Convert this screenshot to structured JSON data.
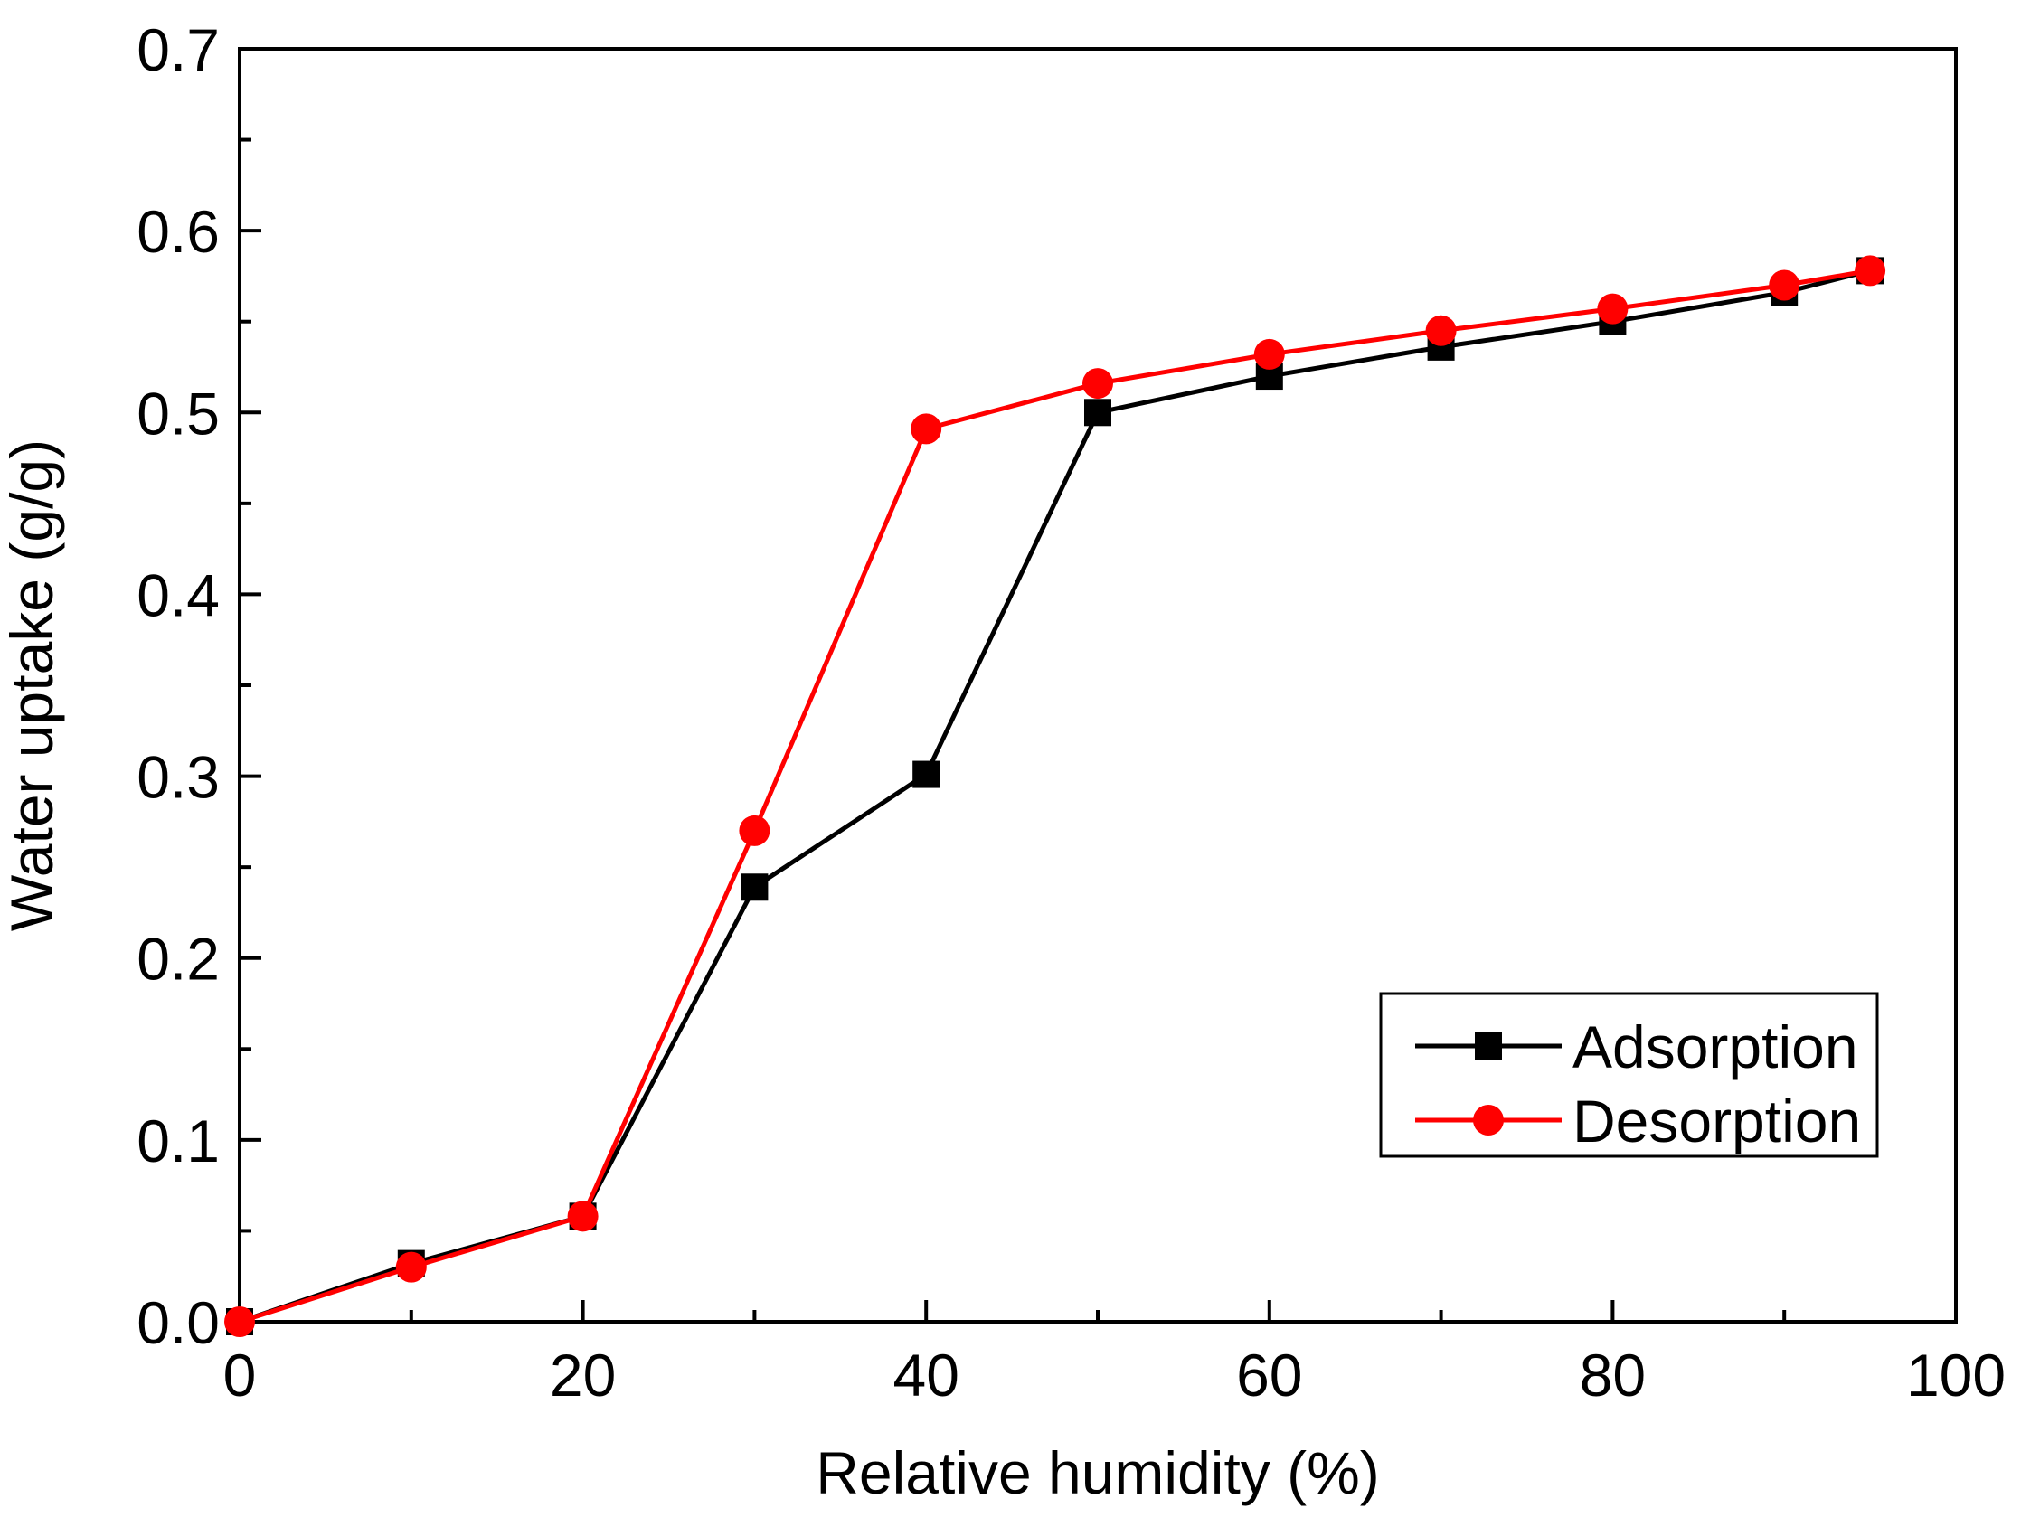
{
  "chart_data": {
    "type": "line",
    "title": "",
    "xlabel": "Relative humidity (%)",
    "ylabel": "Water uptake (g/g)",
    "xlim": [
      0,
      100
    ],
    "ylim": [
      0.0,
      0.7
    ],
    "x_ticks": [
      0,
      20,
      40,
      60,
      80,
      100
    ],
    "x_tick_labels": [
      "0",
      "20",
      "40",
      "60",
      "80",
      "100"
    ],
    "y_ticks": [
      0.0,
      0.1,
      0.2,
      0.3,
      0.4,
      0.5,
      0.6,
      0.7
    ],
    "y_tick_labels": [
      "0.0",
      "0.1",
      "0.2",
      "0.3",
      "0.4",
      "0.5",
      "0.6",
      "0.7"
    ],
    "grid": false,
    "legend_position": "lower-right",
    "series": [
      {
        "name": "Adsorption",
        "color": "#000000",
        "marker": "square",
        "x": [
          0,
          10,
          20,
          30,
          40,
          50,
          60,
          70,
          80,
          90,
          95
        ],
        "values": [
          0.0,
          0.032,
          0.058,
          0.239,
          0.301,
          0.5,
          0.52,
          0.536,
          0.55,
          0.566,
          0.578
        ]
      },
      {
        "name": "Desorption",
        "color": "#ff0000",
        "marker": "circle",
        "x": [
          0,
          10,
          20,
          30,
          40,
          50,
          60,
          70,
          80,
          90,
          95
        ],
        "values": [
          0.0,
          0.03,
          0.058,
          0.27,
          0.491,
          0.516,
          0.532,
          0.545,
          0.557,
          0.57,
          0.578
        ]
      }
    ]
  }
}
